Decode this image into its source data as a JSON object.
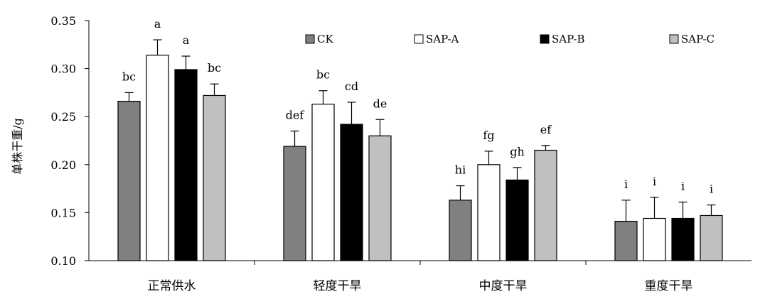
{
  "chart_data": {
    "type": "bar",
    "title": "",
    "xlabel": "",
    "ylabel": "单株干重/g",
    "ylim": [
      0.1,
      0.35
    ],
    "yticks": [
      "0.10",
      "0.15",
      "0.20",
      "0.25",
      "0.30",
      "0.35"
    ],
    "categories": [
      "正常供水",
      "轻度干旱",
      "中度干旱",
      "重度干旱"
    ],
    "legend_position": "top",
    "grid": false,
    "series": [
      {
        "name": "CK",
        "color": "#808080",
        "values": [
          0.266,
          0.219,
          0.163,
          0.141
        ],
        "errors": [
          0.009,
          0.016,
          0.015,
          0.022
        ],
        "labels": [
          "bc",
          "def",
          "hi",
          "i"
        ]
      },
      {
        "name": "SAP-A",
        "color": "#ffffff",
        "values": [
          0.314,
          0.263,
          0.2,
          0.144
        ],
        "errors": [
          0.016,
          0.014,
          0.014,
          0.022
        ],
        "labels": [
          "a",
          "bc",
          "fg",
          "i"
        ]
      },
      {
        "name": "SAP-B",
        "color": "#000000",
        "values": [
          0.299,
          0.242,
          0.184,
          0.144
        ],
        "errors": [
          0.014,
          0.023,
          0.013,
          0.017
        ],
        "labels": [
          "a",
          "cd",
          "gh",
          "i"
        ]
      },
      {
        "name": "SAP-C",
        "color": "#c0c0c0",
        "values": [
          0.272,
          0.23,
          0.215,
          0.147
        ],
        "errors": [
          0.012,
          0.017,
          0.005,
          0.011
        ],
        "labels": [
          "bc",
          "de",
          "ef",
          "i"
        ]
      }
    ]
  }
}
